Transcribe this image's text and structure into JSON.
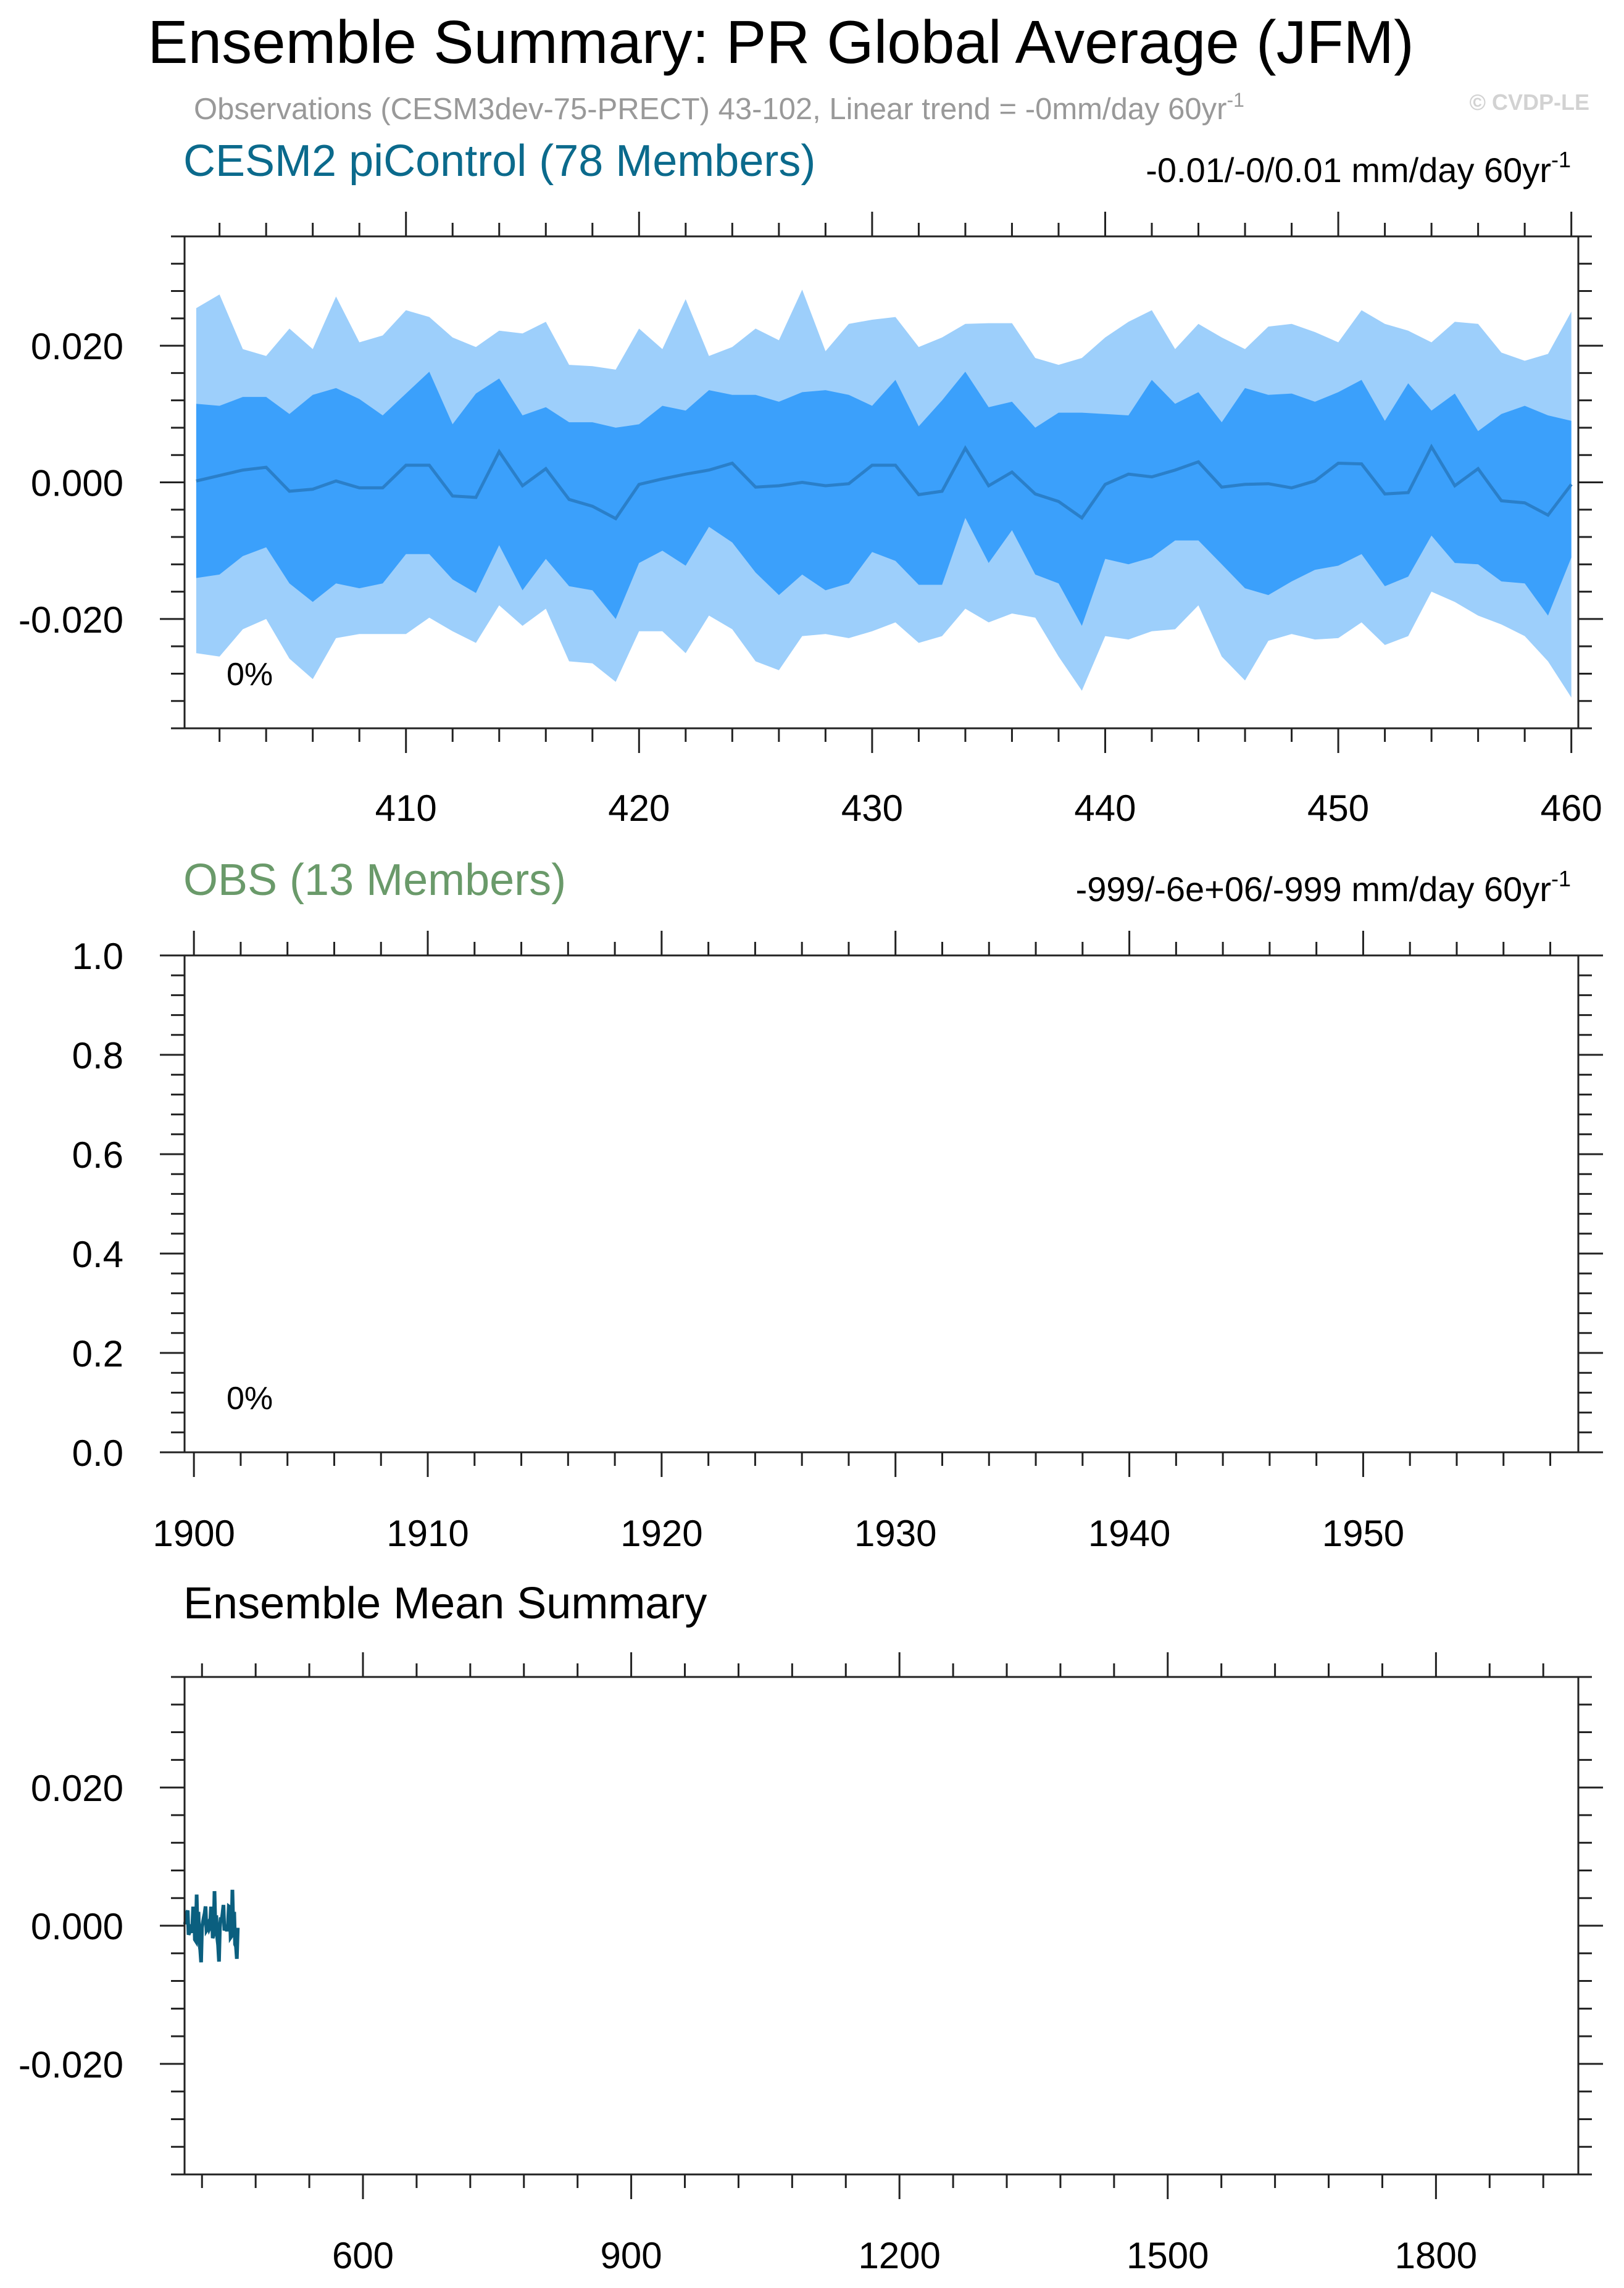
{
  "header": {
    "title": "Ensemble Summary: PR Global Average (JFM)",
    "subtitle": "Observations (CESM3dev-75-PRECT) 43-102, Linear trend = -0mm/day 60yr",
    "subtitle_sup": "-1",
    "watermark": "© CVDP-LE"
  },
  "colors": {
    "model_title": "#0b6a8c",
    "obs_title": "#6a9a6a",
    "band_outer": "#9dcffb",
    "band_inner": "#3ba0fb",
    "mean_line": "#2a7fc9",
    "ens_mean_line": "#0b5f7f",
    "watermark": "#d2d2d2",
    "subtitle": "#999999"
  },
  "chart_data": [
    {
      "type": "area",
      "panel": "model",
      "title": "CESM2 piControl (78 Members)",
      "trend_label": "-0.01/-0/0.01 mm/day 60yr",
      "trend_sup": "-1",
      "percent_label": "0%",
      "xlim": [
        400.5,
        460.3
      ],
      "ylim": [
        -0.036,
        0.036
      ],
      "x_ticks": [
        410,
        420,
        430,
        440,
        450,
        460
      ],
      "x_tick_labels": [
        "410",
        "420",
        "430",
        "440",
        "450",
        "460"
      ],
      "y_ticks": [
        -0.02,
        0.0,
        0.02
      ],
      "y_tick_labels": [
        "-0.020",
        "0.000",
        "0.020"
      ],
      "x": [
        401,
        402,
        403,
        404,
        405,
        406,
        407,
        408,
        409,
        410,
        411,
        412,
        413,
        414,
        415,
        416,
        417,
        418,
        419,
        420,
        421,
        422,
        423,
        424,
        425,
        426,
        427,
        428,
        429,
        430,
        431,
        432,
        433,
        434,
        435,
        436,
        437,
        438,
        439,
        440,
        441,
        442,
        443,
        444,
        445,
        446,
        447,
        448,
        449,
        450,
        451,
        452,
        453,
        454,
        455,
        456,
        457,
        458,
        459,
        460
      ],
      "series": [
        {
          "band": "outer_upper",
          "values": [
            0.0255,
            0.0275,
            0.0195,
            0.0185,
            0.0225,
            0.0195,
            0.0272,
            0.0205,
            0.0215,
            0.0252,
            0.0242,
            0.0212,
            0.0198,
            0.0222,
            0.0218,
            0.0235,
            0.0172,
            0.017,
            0.0165,
            0.0225,
            0.0195,
            0.0268,
            0.0185,
            0.0198,
            0.0225,
            0.0208,
            0.0282,
            0.0192,
            0.0232,
            0.0238,
            0.0242,
            0.0198,
            0.0212,
            0.0232,
            0.0233,
            0.0233,
            0.0182,
            0.0172,
            0.0182,
            0.0212,
            0.0235,
            0.0252,
            0.0195,
            0.0232,
            0.0212,
            0.0195,
            0.0228,
            0.0232,
            0.022,
            0.0205,
            0.0252,
            0.0232,
            0.0222,
            0.0205,
            0.0235,
            0.0232,
            0.019,
            0.0178,
            0.0188,
            0.025
          ]
        },
        {
          "band": "inner_upper",
          "values": [
            0.0115,
            0.0112,
            0.0125,
            0.0125,
            0.01,
            0.0128,
            0.0138,
            0.0122,
            0.0098,
            0.013,
            0.0162,
            0.0085,
            0.013,
            0.0152,
            0.0098,
            0.011,
            0.0088,
            0.0088,
            0.008,
            0.0085,
            0.0112,
            0.0105,
            0.0135,
            0.0128,
            0.0128,
            0.0118,
            0.0132,
            0.0135,
            0.0128,
            0.0112,
            0.015,
            0.0082,
            0.012,
            0.0162,
            0.011,
            0.0118,
            0.008,
            0.0102,
            0.0102,
            0.01,
            0.0098,
            0.015,
            0.0115,
            0.0132,
            0.0088,
            0.0138,
            0.0128,
            0.013,
            0.0118,
            0.0132,
            0.015,
            0.009,
            0.0145,
            0.0105,
            0.013,
            0.0075,
            0.01,
            0.0112,
            0.0098,
            0.009
          ]
        },
        {
          "band": "mean",
          "values": [
            0.0002,
            0.001,
            0.0018,
            0.0022,
            -0.0013,
            -0.001,
            0.0002,
            -0.0008,
            -0.0008,
            0.0025,
            0.0025,
            -0.002,
            -0.0022,
            0.0045,
            -0.0005,
            0.002,
            -0.0025,
            -0.0035,
            -0.0053,
            -0.0003,
            0.0005,
            0.0012,
            0.0018,
            0.0028,
            -0.0007,
            -0.0005,
            0.0,
            -0.0005,
            -0.0002,
            0.0025,
            0.0025,
            -0.0018,
            -0.0013,
            0.005,
            -0.0005,
            0.0015,
            -0.0017,
            -0.0028,
            -0.0052,
            -0.0003,
            0.0012,
            0.0008,
            0.0018,
            0.003,
            -0.0007,
            -0.0003,
            -0.0002,
            -0.0008,
            0.0002,
            0.0028,
            0.0027,
            -0.0017,
            -0.0015,
            0.0052,
            -0.0005,
            0.002,
            -0.0027,
            -0.003,
            -0.0048,
            -0.0003
          ]
        },
        {
          "band": "inner_lower",
          "values": [
            -0.014,
            -0.0135,
            -0.0108,
            -0.0095,
            -0.0148,
            -0.0175,
            -0.0148,
            -0.0155,
            -0.0148,
            -0.0105,
            -0.0105,
            -0.0142,
            -0.0162,
            -0.0092,
            -0.0158,
            -0.0112,
            -0.0152,
            -0.0158,
            -0.02,
            -0.0118,
            -0.01,
            -0.0122,
            -0.0065,
            -0.0088,
            -0.0132,
            -0.0165,
            -0.0135,
            -0.0158,
            -0.0148,
            -0.0102,
            -0.0115,
            -0.015,
            -0.015,
            -0.0052,
            -0.0118,
            -0.007,
            -0.0135,
            -0.0148,
            -0.021,
            -0.0112,
            -0.012,
            -0.011,
            -0.0085,
            -0.0085,
            -0.012,
            -0.0155,
            -0.0165,
            -0.0145,
            -0.0128,
            -0.0122,
            -0.0105,
            -0.0152,
            -0.0138,
            -0.0078,
            -0.0118,
            -0.012,
            -0.0145,
            -0.0148,
            -0.0195,
            -0.011
          ]
        },
        {
          "band": "outer_lower",
          "values": [
            -0.025,
            -0.0255,
            -0.0215,
            -0.02,
            -0.0258,
            -0.0288,
            -0.0228,
            -0.0222,
            -0.0222,
            -0.0222,
            -0.0198,
            -0.0218,
            -0.0235,
            -0.018,
            -0.021,
            -0.0185,
            -0.0262,
            -0.0265,
            -0.0292,
            -0.0218,
            -0.0218,
            -0.025,
            -0.0195,
            -0.0215,
            -0.0262,
            -0.0275,
            -0.0225,
            -0.0222,
            -0.0228,
            -0.0218,
            -0.0205,
            -0.0235,
            -0.0225,
            -0.0185,
            -0.0205,
            -0.0192,
            -0.0198,
            -0.0255,
            -0.0305,
            -0.0225,
            -0.023,
            -0.0218,
            -0.0215,
            -0.018,
            -0.0255,
            -0.029,
            -0.0232,
            -0.0222,
            -0.023,
            -0.0228,
            -0.0205,
            -0.0238,
            -0.0225,
            -0.016,
            -0.0175,
            -0.0195,
            -0.0208,
            -0.0225,
            -0.0262,
            -0.0315
          ]
        }
      ]
    },
    {
      "type": "line",
      "panel": "obs",
      "title": "OBS (13 Members)",
      "trend_label": "-999/-6e+06/-999 mm/day 60yr",
      "trend_sup": "-1",
      "percent_label": "0%",
      "xlim": [
        1899.6,
        1959.2
      ],
      "ylim": [
        0.0,
        1.0
      ],
      "x_ticks": [
        1900,
        1910,
        1920,
        1930,
        1940,
        1950
      ],
      "x_tick_labels": [
        "1900",
        "1910",
        "1920",
        "1930",
        "1940",
        "1950"
      ],
      "y_ticks": [
        0.0,
        0.2,
        0.4,
        0.6,
        0.8,
        1.0
      ],
      "y_tick_labels": [
        "0.0",
        "0.2",
        "0.4",
        "0.6",
        "0.8",
        "1.0"
      ],
      "series": []
    },
    {
      "type": "line",
      "panel": "ensemble_mean",
      "title": "Ensemble Mean Summary",
      "xlim": [
        400.5,
        1959.2
      ],
      "ylim": [
        -0.036,
        0.036
      ],
      "x_ticks": [
        600,
        900,
        1200,
        1500,
        1800
      ],
      "x_tick_labels": [
        "600",
        "900",
        "1200",
        "1500",
        "1800"
      ],
      "y_ticks": [
        -0.02,
        0.0,
        0.02
      ],
      "y_tick_labels": [
        "-0.020",
        "0.000",
        "0.020"
      ],
      "series": [
        {
          "name": "",
          "x_start": 401,
          "x_step": 1,
          "values": [
            0.0002,
            0.001,
            0.0018,
            0.0022,
            -0.0013,
            -0.001,
            0.0002,
            -0.0008,
            -0.0008,
            0.0025,
            0.0025,
            -0.002,
            -0.0022,
            0.0045,
            -0.0005,
            0.002,
            -0.0025,
            -0.0035,
            -0.0053,
            -0.0003,
            0.0005,
            0.0012,
            0.0018,
            0.0028,
            -0.0007,
            -0.0005,
            0.0,
            -0.0005,
            -0.0002,
            0.0025,
            0.0025,
            -0.0018,
            -0.0013,
            0.005,
            -0.0005,
            0.0015,
            -0.0017,
            -0.0028,
            -0.0052,
            -0.0003,
            0.0012,
            0.0008,
            0.0018,
            0.003,
            -0.0007,
            -0.0003,
            -0.0002,
            -0.0008,
            0.0002,
            0.0028,
            0.0027,
            -0.0017,
            -0.0015,
            0.0052,
            -0.0005,
            0.002,
            -0.0027,
            -0.003,
            -0.0048,
            -0.0003
          ]
        }
      ]
    }
  ]
}
